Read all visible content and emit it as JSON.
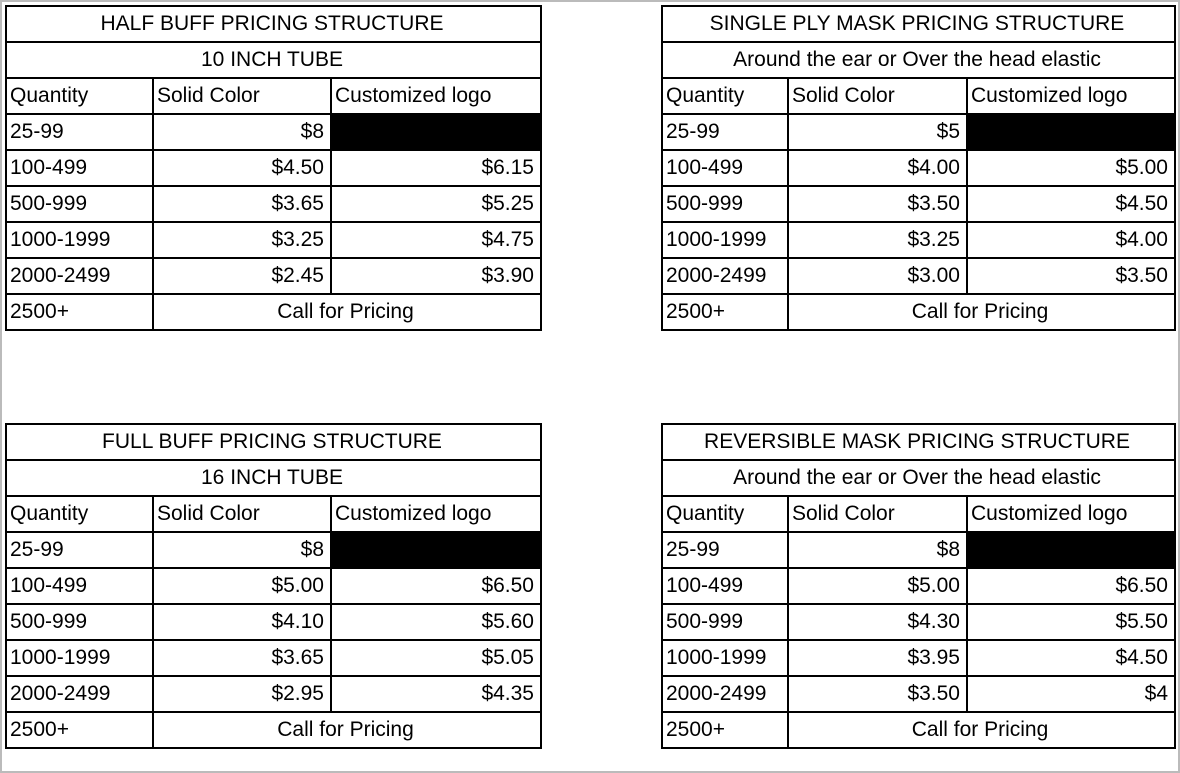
{
  "tables": [
    {
      "title": "HALF BUFF PRICING STRUCTURE",
      "subtitle": "10 INCH TUBE",
      "header": [
        "Quantity",
        "Solid Color",
        "Customized logo"
      ],
      "rows": [
        {
          "quantity": "25-99",
          "solid": "$8"
        },
        {
          "quantity": "100-499",
          "solid": "$4.50",
          "logo": "$6.15"
        },
        {
          "quantity": "500-999",
          "solid": "$3.65",
          "logo": "$5.25"
        },
        {
          "quantity": "1000-1999",
          "solid": "$3.25",
          "logo": "$4.75"
        },
        {
          "quantity": "2000-2499",
          "solid": "$2.45",
          "logo": "$3.90"
        },
        {
          "quantity": "2500+",
          "note": "Call for Pricing"
        }
      ]
    },
    {
      "title": "SINGLE PLY MASK PRICING STRUCTURE",
      "subtitle": "Around the ear or Over the head elastic",
      "header": [
        "Quantity",
        "Solid Color",
        "Customized logo"
      ],
      "rows": [
        {
          "quantity": "25-99",
          "solid": "$5"
        },
        {
          "quantity": "100-499",
          "solid": "$4.00",
          "logo": "$5.00"
        },
        {
          "quantity": "500-999",
          "solid": "$3.50",
          "logo": "$4.50"
        },
        {
          "quantity": "1000-1999",
          "solid": "$3.25",
          "logo": "$4.00"
        },
        {
          "quantity": "2000-2499",
          "solid": "$3.00",
          "logo": "$3.50"
        },
        {
          "quantity": "2500+",
          "note": "Call for Pricing"
        }
      ]
    },
    {
      "title": "FULL BUFF PRICING STRUCTURE",
      "subtitle": "16 INCH TUBE",
      "header": [
        "Quantity",
        "Solid Color",
        "Customized logo"
      ],
      "rows": [
        {
          "quantity": "25-99",
          "solid": "$8"
        },
        {
          "quantity": "100-499",
          "solid": "$5.00",
          "logo": "$6.50"
        },
        {
          "quantity": "500-999",
          "solid": "$4.10",
          "logo": "$5.60"
        },
        {
          "quantity": "1000-1999",
          "solid": "$3.65",
          "logo": "$5.05"
        },
        {
          "quantity": "2000-2499",
          "solid": "$2.95",
          "logo": "$4.35"
        },
        {
          "quantity": "2500+",
          "note": "Call for Pricing"
        }
      ]
    },
    {
      "title": "REVERSIBLE MASK PRICING STRUCTURE",
      "subtitle": "Around the ear or Over the head elastic",
      "header": [
        "Quantity",
        "Solid Color",
        "Customized logo"
      ],
      "rows": [
        {
          "quantity": "25-99",
          "solid": "$8"
        },
        {
          "quantity": "100-499",
          "solid": "$5.00",
          "logo": "$6.50"
        },
        {
          "quantity": "500-999",
          "solid": "$4.30",
          "logo": "$5.50"
        },
        {
          "quantity": "1000-1999",
          "solid": "$3.95",
          "logo": "$4.50"
        },
        {
          "quantity": "2000-2499",
          "solid": "$3.50",
          "logo": "$4"
        },
        {
          "quantity": "2500+",
          "note": "Call for Pricing"
        }
      ]
    }
  ]
}
